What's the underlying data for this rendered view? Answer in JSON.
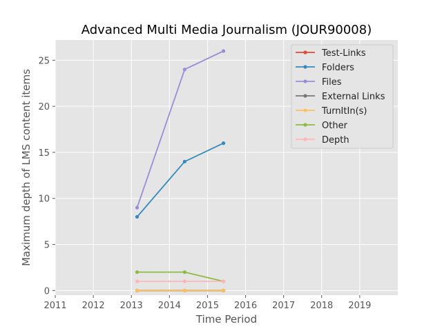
{
  "chart_data": {
    "type": "line",
    "title": "Advanced Multi Media Journalism (JOUR90008)",
    "xlabel": "Time Period",
    "ylabel": "Maximum depth of LMS content items",
    "xlim": [
      2011,
      2020
    ],
    "ylim": [
      -0.5,
      27.2
    ],
    "xticks": [
      2011,
      2012,
      2013,
      2014,
      2015,
      2016,
      2017,
      2018,
      2019
    ],
    "yticks": [
      0,
      5,
      10,
      15,
      20,
      25
    ],
    "grid": true,
    "legend_position": "top-right",
    "x": [
      2013.15,
      2014.4,
      2015.42
    ],
    "series": [
      {
        "name": "Test-Links",
        "color": "#e24a33",
        "values": [
          0,
          0,
          0
        ]
      },
      {
        "name": "Folders",
        "color": "#348abd",
        "values": [
          8,
          14,
          16
        ]
      },
      {
        "name": "Files",
        "color": "#988ed5",
        "values": [
          9,
          24,
          26
        ]
      },
      {
        "name": "External Links",
        "color": "#777777",
        "values": [
          0,
          0,
          0
        ]
      },
      {
        "name": "TurnItIn(s)",
        "color": "#fbc15e",
        "values": [
          0,
          0,
          0
        ]
      },
      {
        "name": "Other",
        "color": "#8eba42",
        "values": [
          2,
          2,
          1
        ]
      },
      {
        "name": "Depth",
        "color": "#ffb5b8",
        "values": [
          1,
          1,
          1
        ]
      }
    ]
  }
}
